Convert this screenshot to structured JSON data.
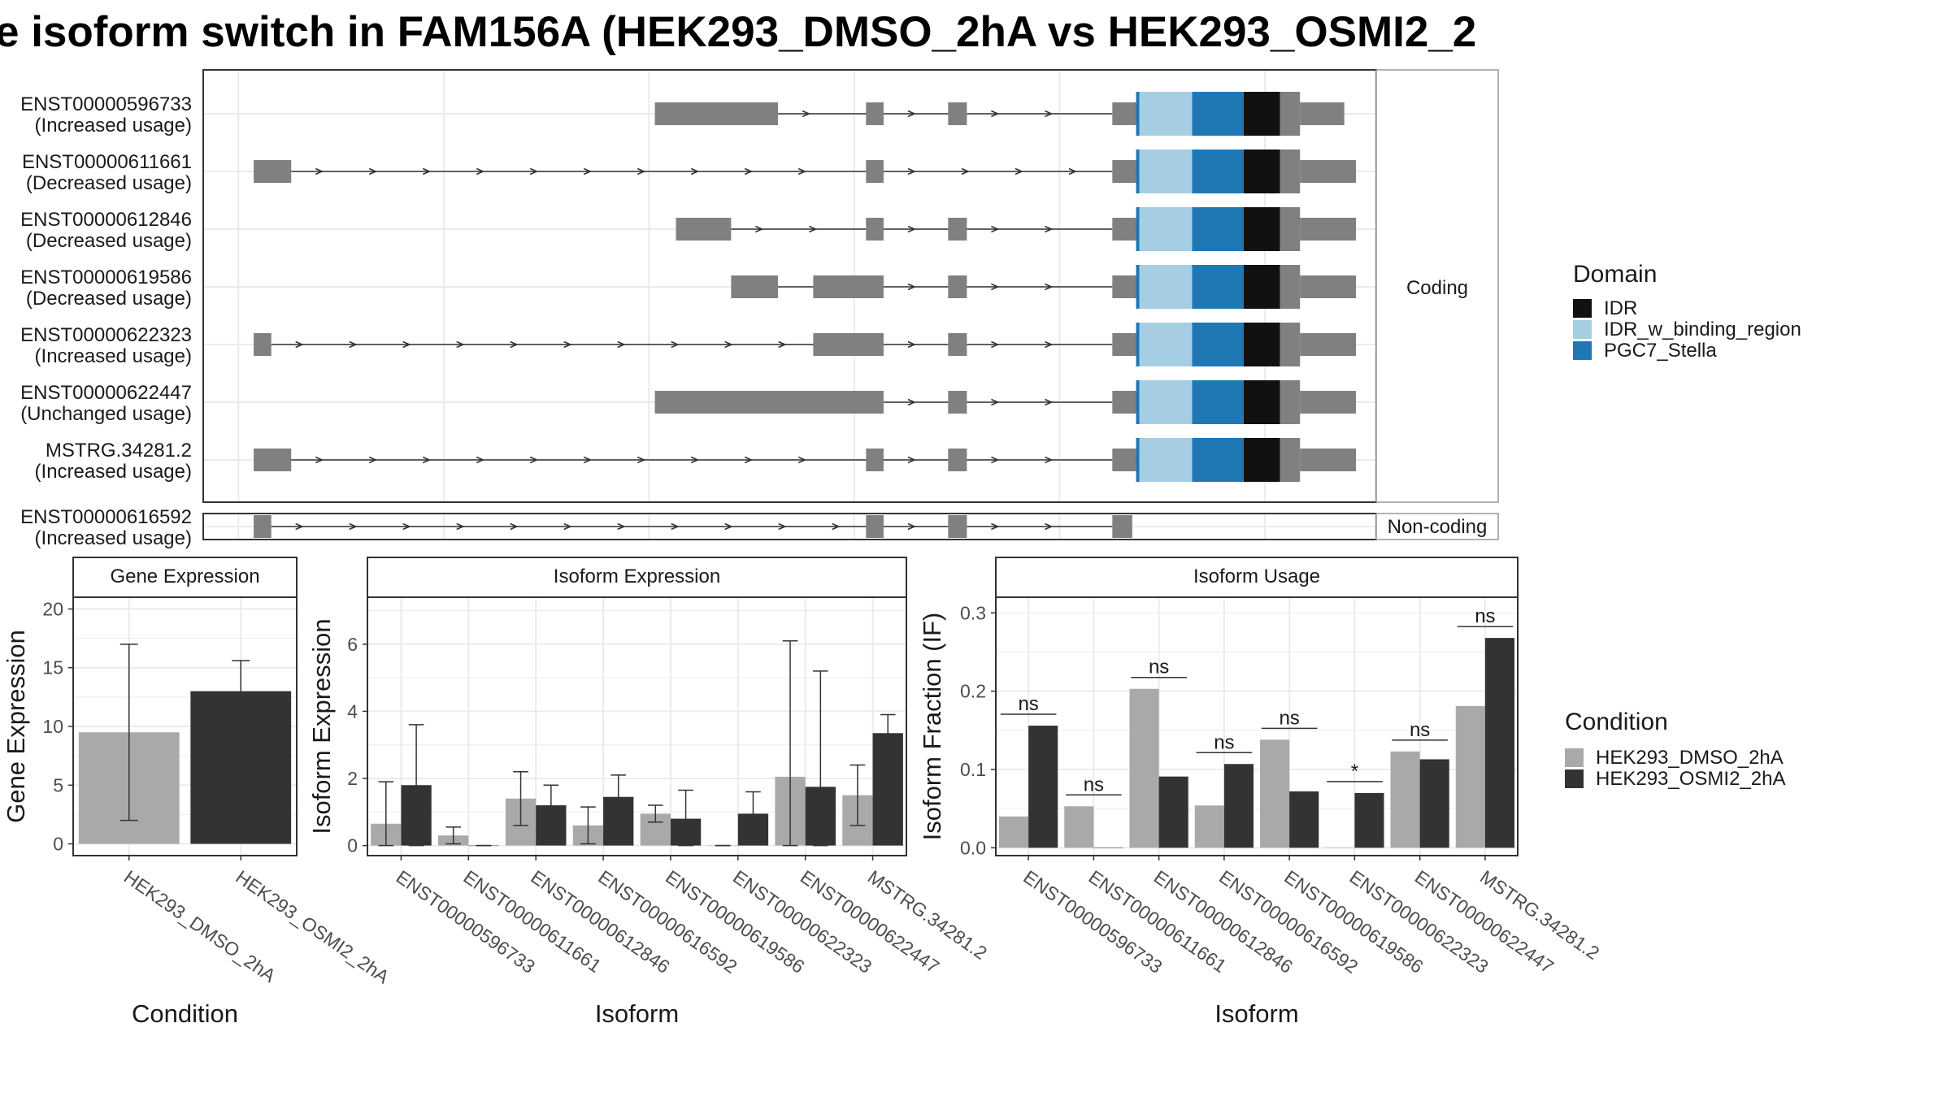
{
  "title": "e isoform switch in FAM156A (HEK293_DMSO_2hA vs HEK293_OSMI2_2",
  "colors": {
    "exon": "#808080",
    "IDR": "#111111",
    "IDR_w_binding_region": "#a6cee3",
    "PGC7_Stella": "#1f78b4",
    "dmso": "#a9a9a9",
    "osmi": "#333333",
    "grid": "#ebebeb",
    "panel_border": "#333333"
  },
  "structure": {
    "facet_coding": "Coding",
    "facet_noncoding": "Non-coding",
    "transcripts": [
      {
        "id": "ENST00000596733",
        "status": "(Increased usage)",
        "group": "coding",
        "exons": [
          [
            0.385,
            0.49
          ],
          [
            0.565,
            0.58
          ],
          [
            0.635,
            0.651
          ],
          [
            0.775,
            0.798
          ]
        ],
        "domain": true
      },
      {
        "id": "ENST00000611661",
        "status": "(Decreased usage)",
        "group": "coding",
        "exons": [
          [
            0.043,
            0.075
          ],
          [
            0.565,
            0.58
          ],
          [
            0.775,
            0.798
          ]
        ],
        "domain": true
      },
      {
        "id": "ENST00000612846",
        "status": "(Decreased usage)",
        "group": "coding",
        "exons": [
          [
            0.403,
            0.45
          ],
          [
            0.565,
            0.58
          ],
          [
            0.635,
            0.651
          ],
          [
            0.775,
            0.798
          ]
        ],
        "domain": true
      },
      {
        "id": "ENST00000619586",
        "status": "(Decreased usage)",
        "group": "coding",
        "exons": [
          [
            0.45,
            0.49
          ],
          [
            0.52,
            0.58
          ],
          [
            0.635,
            0.651
          ],
          [
            0.775,
            0.798
          ]
        ],
        "domain": true
      },
      {
        "id": "ENST00000622323",
        "status": "(Increased usage)",
        "group": "coding",
        "exons": [
          [
            0.043,
            0.058
          ],
          [
            0.52,
            0.58
          ],
          [
            0.635,
            0.651
          ],
          [
            0.775,
            0.798
          ]
        ],
        "domain": true
      },
      {
        "id": "ENST00000622447",
        "status": "(Unchanged usage)",
        "group": "coding",
        "exons": [
          [
            0.385,
            0.58
          ],
          [
            0.635,
            0.651
          ],
          [
            0.775,
            0.798
          ]
        ],
        "domain": true
      },
      {
        "id": "MSTRG.34281.2",
        "status": "(Increased usage)",
        "group": "coding",
        "exons": [
          [
            0.043,
            0.075
          ],
          [
            0.565,
            0.58
          ],
          [
            0.635,
            0.651
          ],
          [
            0.775,
            0.798
          ]
        ],
        "domain": true
      },
      {
        "id": "ENST00000616592",
        "status": "(Increased usage)",
        "group": "noncoding",
        "exons": [
          [
            0.043,
            0.058
          ],
          [
            0.565,
            0.58
          ],
          [
            0.635,
            0.651
          ],
          [
            0.775,
            0.792
          ]
        ],
        "domain": false
      }
    ]
  },
  "legend_domain": {
    "title": "Domain",
    "items": [
      {
        "label": "IDR",
        "color": "#111111"
      },
      {
        "label": "IDR_w_binding_region",
        "color": "#a6cee3"
      },
      {
        "label": "PGC7_Stella",
        "color": "#1f78b4"
      }
    ]
  },
  "legend_condition": {
    "title": "Condition",
    "items": [
      {
        "label": "HEK293_DMSO_2hA",
        "color": "#a9a9a9"
      },
      {
        "label": "HEK293_OSMI2_2hA",
        "color": "#333333"
      }
    ]
  },
  "chart_data": [
    {
      "type": "bar",
      "title": "Gene Expression",
      "xlabel": "Condition",
      "ylabel": "Gene Expression",
      "categories": [
        "HEK293_DMSO_2hA",
        "HEK293_OSMI2_2hA"
      ],
      "values": [
        9.5,
        13.0
      ],
      "errors": [
        [
          2.0,
          17.0
        ],
        [
          10.3,
          15.6
        ]
      ],
      "colors": [
        "#a9a9a9",
        "#333333"
      ],
      "ylim": [
        -1,
        21
      ],
      "yticks": [
        0,
        5,
        10,
        15,
        20
      ]
    },
    {
      "type": "bar",
      "title": "Isoform Expression",
      "xlabel": "Isoform",
      "ylabel": "Isoform Expression",
      "categories": [
        "ENST00000596733",
        "ENST00000611661",
        "ENST00000612846",
        "ENST00000616592",
        "ENST00000619586",
        "ENST00000622323",
        "ENST00000622447",
        "MSTRG.34281.2"
      ],
      "series": [
        {
          "name": "HEK293_DMSO_2hA",
          "values": [
            0.65,
            0.3,
            1.4,
            0.6,
            0.95,
            0.0,
            2.05,
            1.5
          ],
          "errors": [
            [
              0.0,
              1.9
            ],
            [
              0.05,
              0.55
            ],
            [
              0.6,
              2.2
            ],
            [
              0.05,
              1.15
            ],
            [
              0.7,
              1.2
            ],
            [
              0.0,
              0.0
            ],
            [
              0.0,
              6.1
            ],
            [
              0.6,
              2.4
            ]
          ]
        },
        {
          "name": "HEK293_OSMI2_2hA",
          "values": [
            1.8,
            0.0,
            1.2,
            1.45,
            0.8,
            0.95,
            1.75,
            3.35
          ],
          "errors": [
            [
              0.0,
              3.6
            ],
            [
              0.0,
              0.0
            ],
            [
              0.6,
              1.8
            ],
            [
              0.8,
              2.1
            ],
            [
              0.0,
              1.65
            ],
            [
              0.3,
              1.6
            ],
            [
              0.0,
              5.2
            ],
            [
              2.8,
              3.9
            ]
          ]
        }
      ],
      "ylim": [
        -0.3,
        7.4
      ],
      "yticks": [
        0,
        2,
        4,
        6
      ]
    },
    {
      "type": "bar",
      "title": "Isoform Usage",
      "xlabel": "Isoform",
      "ylabel": "Isoform Fraction (IF)",
      "categories": [
        "ENST00000596733",
        "ENST00000611661",
        "ENST00000612846",
        "ENST00000616592",
        "ENST00000619586",
        "ENST00000622323",
        "ENST00000622447",
        "MSTRG.34281.2"
      ],
      "series": [
        {
          "name": "HEK293_DMSO_2hA",
          "values": [
            0.04,
            0.053,
            0.203,
            0.054,
            0.138,
            0.0,
            0.123,
            0.181
          ]
        },
        {
          "name": "HEK293_OSMI2_2hA",
          "values": [
            0.156,
            0.0,
            0.091,
            0.107,
            0.072,
            0.07,
            0.113,
            0.268
          ]
        }
      ],
      "significance": [
        "ns",
        "ns",
        "ns",
        "ns",
        "ns",
        "*",
        "ns",
        "ns"
      ],
      "ylim": [
        -0.01,
        0.32
      ],
      "yticks": [
        0.0,
        0.1,
        0.2,
        0.3
      ]
    }
  ]
}
